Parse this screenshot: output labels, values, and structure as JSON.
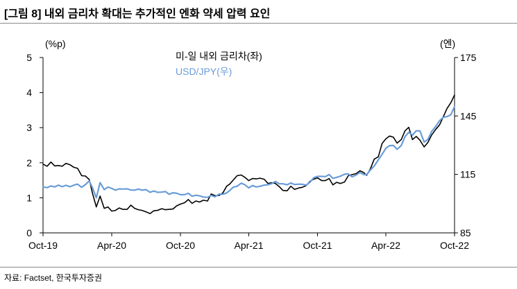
{
  "chart_data": {
    "type": "line",
    "title": "[그림 8] 내외 금리차 확대는 추가적인 엔화 약세 압력 요인",
    "source": "자료: Factset, 한국투자증권",
    "xlim": [
      "2019-10-21",
      "2022-10-21"
    ],
    "x_ticks": [
      "Oct-19",
      "Apr-20",
      "Oct-20",
      "Apr-21",
      "Oct-21",
      "Apr-22",
      "Oct-22"
    ],
    "y_left": {
      "label": "(%p)",
      "lim": [
        0,
        5
      ],
      "ticks": [
        0,
        1,
        2,
        3,
        4,
        5
      ]
    },
    "y_right": {
      "label": "(엔)",
      "lim": [
        85,
        175
      ],
      "ticks": [
        85,
        115,
        145,
        175
      ]
    },
    "grid": false,
    "legend": "top-center",
    "x": [
      "2019-10-21",
      "2019-11-01",
      "2019-11-11",
      "2019-11-21",
      "2019-12-01",
      "2019-12-11",
      "2019-12-21",
      "2020-01-01",
      "2020-01-11",
      "2020-01-21",
      "2020-02-01",
      "2020-02-11",
      "2020-02-21",
      "2020-03-01",
      "2020-03-11",
      "2020-03-21",
      "2020-04-01",
      "2020-04-11",
      "2020-04-21",
      "2020-05-01",
      "2020-05-11",
      "2020-05-21",
      "2020-06-01",
      "2020-06-11",
      "2020-06-21",
      "2020-07-01",
      "2020-07-11",
      "2020-07-21",
      "2020-08-01",
      "2020-08-11",
      "2020-08-21",
      "2020-09-01",
      "2020-09-11",
      "2020-09-21",
      "2020-10-01",
      "2020-10-11",
      "2020-10-21",
      "2020-11-01",
      "2020-11-11",
      "2020-11-21",
      "2020-12-01",
      "2020-12-11",
      "2020-12-21",
      "2021-01-01",
      "2021-01-11",
      "2021-01-21",
      "2021-02-01",
      "2021-02-11",
      "2021-02-21",
      "2021-03-01",
      "2021-03-11",
      "2021-03-21",
      "2021-04-01",
      "2021-04-11",
      "2021-04-21",
      "2021-05-01",
      "2021-05-11",
      "2021-05-21",
      "2021-06-01",
      "2021-06-11",
      "2021-06-21",
      "2021-07-01",
      "2021-07-11",
      "2021-07-21",
      "2021-08-01",
      "2021-08-11",
      "2021-08-21",
      "2021-09-01",
      "2021-09-11",
      "2021-09-21",
      "2021-10-01",
      "2021-10-11",
      "2021-10-21",
      "2021-11-01",
      "2021-11-11",
      "2021-11-21",
      "2021-12-01",
      "2021-12-11",
      "2021-12-21",
      "2022-01-01",
      "2022-01-11",
      "2022-01-21",
      "2022-02-01",
      "2022-02-11",
      "2022-02-21",
      "2022-03-01",
      "2022-03-11",
      "2022-03-21",
      "2022-04-01",
      "2022-04-11",
      "2022-04-21",
      "2022-05-01",
      "2022-05-11",
      "2022-05-21",
      "2022-06-01",
      "2022-06-11",
      "2022-06-21",
      "2022-07-01",
      "2022-07-11",
      "2022-07-21",
      "2022-08-01",
      "2022-08-11",
      "2022-08-21",
      "2022-09-01",
      "2022-09-11",
      "2022-09-21",
      "2022-10-01",
      "2022-10-11",
      "2022-10-21"
    ],
    "series": [
      {
        "name": "미-일 내외 금리차(좌)",
        "axis": "left",
        "color": "#000000",
        "values": [
          1.96,
          1.9,
          2.02,
          1.91,
          1.92,
          1.9,
          1.98,
          1.94,
          1.87,
          1.84,
          1.63,
          1.62,
          1.52,
          1.12,
          0.74,
          1.05,
          0.7,
          0.74,
          0.62,
          0.64,
          0.71,
          0.67,
          0.67,
          0.79,
          0.7,
          0.66,
          0.64,
          0.6,
          0.55,
          0.63,
          0.64,
          0.69,
          0.66,
          0.67,
          0.68,
          0.77,
          0.82,
          0.86,
          0.95,
          0.84,
          0.91,
          0.88,
          0.93,
          0.91,
          1.11,
          1.06,
          1.07,
          1.14,
          1.33,
          1.39,
          1.51,
          1.63,
          1.65,
          1.58,
          1.49,
          1.55,
          1.54,
          1.56,
          1.53,
          1.41,
          1.43,
          1.41,
          1.32,
          1.21,
          1.2,
          1.33,
          1.24,
          1.28,
          1.3,
          1.35,
          1.47,
          1.53,
          1.57,
          1.49,
          1.49,
          1.55,
          1.37,
          1.44,
          1.41,
          1.45,
          1.63,
          1.66,
          1.69,
          1.77,
          1.72,
          1.64,
          1.83,
          2.1,
          2.17,
          2.55,
          2.68,
          2.76,
          2.73,
          2.56,
          2.66,
          2.91,
          3.01,
          2.66,
          2.75,
          2.64,
          2.45,
          2.58,
          2.79,
          2.95,
          3.08,
          3.31,
          3.55,
          3.71,
          3.93
        ]
      },
      {
        "name": "USD/JPY(우)",
        "axis": "right",
        "color": "#6a9cd8",
        "values": [
          108.6,
          108.2,
          109.1,
          108.6,
          109.5,
          108.7,
          109.4,
          108.7,
          109.5,
          110.0,
          108.4,
          109.8,
          111.6,
          108.0,
          103.0,
          110.8,
          107.2,
          108.5,
          107.8,
          106.9,
          107.6,
          107.5,
          107.6,
          107.0,
          106.9,
          107.5,
          106.9,
          107.2,
          105.8,
          106.5,
          105.8,
          105.9,
          106.2,
          104.8,
          105.6,
          105.3,
          104.6,
          104.6,
          105.3,
          103.8,
          104.3,
          104.0,
          103.4,
          103.2,
          104.2,
          103.5,
          104.9,
          104.8,
          105.5,
          106.7,
          108.5,
          108.9,
          110.5,
          109.6,
          108.1,
          109.3,
          108.6,
          108.9,
          109.5,
          109.7,
          110.3,
          111.4,
          110.2,
          110.2,
          109.7,
          110.6,
          109.8,
          110.0,
          109.9,
          109.5,
          111.0,
          113.3,
          114.0,
          114.0,
          113.9,
          114.9,
          113.0,
          113.5,
          114.1,
          115.1,
          115.3,
          113.7,
          114.7,
          116.0,
          114.9,
          114.9,
          117.3,
          119.3,
          122.5,
          125.3,
          128.4,
          129.8,
          129.9,
          127.9,
          129.8,
          134.4,
          136.6,
          135.2,
          137.4,
          137.3,
          131.6,
          133.0,
          137.0,
          139.6,
          142.6,
          144.3,
          144.7,
          145.6,
          149.8
        ]
      }
    ]
  }
}
